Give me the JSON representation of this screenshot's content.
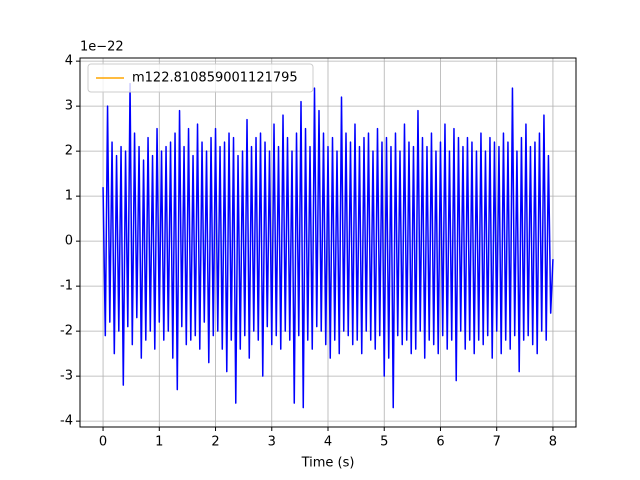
{
  "chart_data": {
    "type": "line",
    "xlabel": "Time (s)",
    "y_offset_label": "1e−22",
    "xlim": [
      -0.41,
      8.41
    ],
    "ylim": [
      -4.13,
      4.07
    ],
    "xticks": [
      0,
      1,
      2,
      3,
      4,
      5,
      6,
      7,
      8
    ],
    "yticks": [
      -4,
      -3,
      -2,
      -1,
      0,
      1,
      2,
      3,
      4
    ],
    "grid": true,
    "legend": "upper left",
    "x": [
      0,
      0.04,
      0.08,
      0.12,
      0.16,
      0.2,
      0.24,
      0.28,
      0.32,
      0.36,
      0.4,
      0.44,
      0.48,
      0.52,
      0.56,
      0.6,
      0.64,
      0.68,
      0.72,
      0.76,
      0.8,
      0.84,
      0.88,
      0.92,
      0.96,
      1,
      1.04,
      1.08,
      1.12,
      1.16,
      1.2,
      1.24,
      1.28,
      1.32,
      1.36,
      1.4,
      1.44,
      1.48,
      1.52,
      1.56,
      1.6,
      1.64,
      1.68,
      1.72,
      1.76,
      1.8,
      1.84,
      1.88,
      1.92,
      1.96,
      2,
      2.04,
      2.08,
      2.12,
      2.16,
      2.2,
      2.24,
      2.28,
      2.32,
      2.36,
      2.4,
      2.44,
      2.48,
      2.52,
      2.56,
      2.6,
      2.64,
      2.68,
      2.72,
      2.76,
      2.8,
      2.84,
      2.88,
      2.92,
      2.96,
      3,
      3.04,
      3.08,
      3.12,
      3.16,
      3.2,
      3.24,
      3.28,
      3.32,
      3.36,
      3.4,
      3.44,
      3.48,
      3.52,
      3.56,
      3.6,
      3.64,
      3.68,
      3.72,
      3.76,
      3.8,
      3.84,
      3.88,
      3.92,
      3.96,
      4,
      4.04,
      4.08,
      4.12,
      4.16,
      4.2,
      4.24,
      4.28,
      4.32,
      4.36,
      4.4,
      4.44,
      4.48,
      4.52,
      4.56,
      4.6,
      4.64,
      4.68,
      4.72,
      4.76,
      4.8,
      4.84,
      4.88,
      4.92,
      4.96,
      5,
      5.04,
      5.08,
      5.12,
      5.16,
      5.2,
      5.24,
      5.28,
      5.32,
      5.36,
      5.4,
      5.44,
      5.48,
      5.52,
      5.56,
      5.6,
      5.64,
      5.68,
      5.72,
      5.76,
      5.8,
      5.84,
      5.88,
      5.92,
      5.96,
      6,
      6.04,
      6.08,
      6.12,
      6.16,
      6.2,
      6.24,
      6.28,
      6.32,
      6.36,
      6.4,
      6.44,
      6.48,
      6.52,
      6.56,
      6.6,
      6.64,
      6.68,
      6.72,
      6.76,
      6.8,
      6.84,
      6.88,
      6.92,
      6.96,
      7,
      7.04,
      7.08,
      7.12,
      7.16,
      7.2,
      7.24,
      7.28,
      7.32,
      7.36,
      7.4,
      7.44,
      7.48,
      7.52,
      7.56,
      7.6,
      7.64,
      7.68,
      7.72,
      7.76,
      7.8,
      7.84,
      7.88,
      7.92,
      7.96,
      8
    ],
    "series": [
      {
        "name": "m122.810859001121795",
        "color": "orange"
      },
      {
        "color": "blue",
        "values": [
          1.2,
          -2.1,
          3.0,
          -1.8,
          2.2,
          -2.5,
          1.9,
          -2.0,
          2.1,
          -3.2,
          2.0,
          -1.9,
          3.5,
          -2.3,
          2.4,
          -1.7,
          2.1,
          -2.6,
          1.8,
          -2.2,
          2.3,
          -2.0,
          1.9,
          -2.4,
          2.5,
          -1.8,
          2.0,
          -2.2,
          2.1,
          -2.0,
          2.2,
          -2.6,
          2.4,
          -3.3,
          2.9,
          -1.9,
          2.1,
          -2.3,
          2.5,
          -2.2,
          1.9,
          -2.1,
          2.6,
          -2.4,
          2.2,
          -1.8,
          2.0,
          -2.7,
          2.3,
          -2.1,
          2.5,
          -2.0,
          2.1,
          -2.4,
          2.2,
          -2.9,
          2.4,
          -2.2,
          2.3,
          -3.6,
          1.9,
          -2.4,
          2.0,
          -2.1,
          2.7,
          -2.6,
          2.1,
          -2.0,
          2.3,
          -2.2,
          2.4,
          -3.0,
          2.2,
          -1.9,
          2.0,
          -2.3,
          2.6,
          -2.1,
          2.1,
          -2.4,
          2.8,
          -2.0,
          2.3,
          -2.2,
          2.0,
          -3.6,
          2.4,
          -2.1,
          3.1,
          -3.7,
          2.5,
          -2.2,
          2.1,
          -2.4,
          3.4,
          -1.9,
          2.9,
          -2.0,
          2.4,
          -2.3,
          2.1,
          -2.6,
          2.3,
          -2.2,
          2.0,
          -2.5,
          3.2,
          -2.0,
          2.4,
          -2.1,
          2.2,
          -2.3,
          2.6,
          -2.2,
          2.1,
          -2.5,
          2.3,
          -2.0,
          2.4,
          -2.2,
          2.0,
          -2.4,
          2.5,
          -2.1,
          2.2,
          -3.0,
          2.3,
          -2.6,
          2.1,
          -3.7,
          2.4,
          -2.1,
          2.0,
          -2.3,
          2.6,
          -2.2,
          2.2,
          -2.5,
          2.1,
          -2.4,
          2.9,
          -2.0,
          2.3,
          -2.6,
          2.1,
          -2.2,
          2.4,
          -2.3,
          2.0,
          -2.5,
          2.2,
          -2.1,
          2.6,
          -2.4,
          2.0,
          -2.2,
          2.5,
          -3.1,
          2.3,
          -2.0,
          2.1,
          -2.4,
          2.3,
          -2.2,
          2.2,
          -2.5,
          2.0,
          -2.2,
          2.4,
          -2.3,
          2.0,
          -2.1,
          2.3,
          -2.6,
          2.2,
          -2.0,
          2.1,
          -2.5,
          2.4,
          -2.2,
          2.2,
          -2.4,
          3.4,
          -2.1,
          2.0,
          -2.9,
          2.3,
          -2.2,
          2.6,
          -2.1,
          2.1,
          -2.3,
          2.2,
          -2.5,
          2.4,
          -2.0,
          2.8,
          -2.2,
          1.9,
          -1.6,
          -0.4
        ]
      }
    ]
  }
}
